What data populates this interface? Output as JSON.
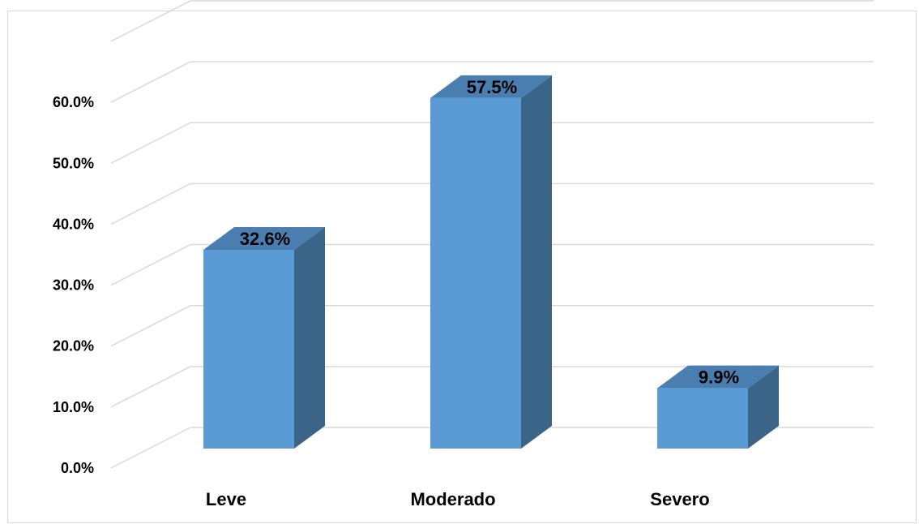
{
  "chart_data": {
    "type": "bar",
    "style": "3d-column",
    "categories": [
      "Leve",
      "Moderado",
      "Severo"
    ],
    "values": [
      32.6,
      57.5,
      9.9
    ],
    "data_labels": [
      "32.6%",
      "57.5%",
      "9.9%"
    ],
    "y_ticks": [
      "0.0%",
      "10.0%",
      "20.0%",
      "30.0%",
      "40.0%",
      "50.0%",
      "60.0%"
    ],
    "ylim": [
      0,
      70
    ],
    "grid": true,
    "legend": "none",
    "title": "",
    "xlabel": "",
    "ylabel": ""
  },
  "colors": {
    "bar_front": "#5b9bd5",
    "bar_side": "#3a6589",
    "bar_top": "#4a7eb0",
    "gridline": "#d9d9d9"
  }
}
